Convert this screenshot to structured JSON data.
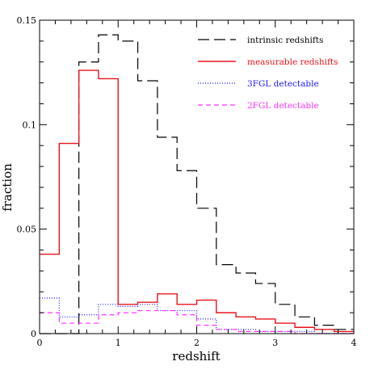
{
  "chart_data": {
    "type": "line",
    "title": "",
    "xlabel": "redshift",
    "ylabel": "fraction",
    "xlim": [
      0,
      4
    ],
    "ylim": [
      0,
      0.15
    ],
    "x_ticks": [
      0,
      1,
      2,
      3,
      4
    ],
    "y_ticks": [
      0,
      0.05,
      0.1,
      0.15
    ],
    "x_tick_labels": [
      "0",
      "1",
      "2",
      "3",
      "4"
    ],
    "y_tick_labels": [
      "0",
      "0.05",
      "0.1",
      "0.15"
    ],
    "grid": false,
    "legend_position": "top-right",
    "bin_edges": [
      0,
      0.25,
      0.5,
      0.75,
      1.0,
      1.25,
      1.5,
      1.75,
      2.0,
      2.25,
      2.5,
      2.75,
      3.0,
      3.25,
      3.5,
      3.75,
      4.0
    ],
    "series": [
      {
        "name": "intrinsic redshifts",
        "color": "#000000",
        "dash": "long-dash",
        "values": [
          0.0,
          0.0,
          0.13,
          0.143,
          0.14,
          0.121,
          0.094,
          0.078,
          0.06,
          0.033,
          0.029,
          0.024,
          0.014,
          0.008,
          0.004,
          0.002
        ]
      },
      {
        "name": "measurable redshifts",
        "color": "#e8141b",
        "dash": "solid",
        "values": [
          0.038,
          0.091,
          0.126,
          0.122,
          0.014,
          0.015,
          0.019,
          0.014,
          0.016,
          0.01,
          0.008,
          0.007,
          0.005,
          0.003,
          0.002,
          0.001
        ]
      },
      {
        "name": "3FGL detectable",
        "color": "#1a1aff",
        "dash": "dotted",
        "values": [
          0.017,
          0.008,
          0.009,
          0.014,
          0.013,
          0.014,
          0.011,
          0.011,
          0.007,
          0.002,
          0.002,
          0.001,
          0.001,
          0.001,
          0.0,
          0.0
        ]
      },
      {
        "name": "2FGL detectable",
        "color": "#ff33ff",
        "dash": "short-dash",
        "values": [
          0.01,
          0.005,
          0.005,
          0.009,
          0.01,
          0.011,
          0.011,
          0.009,
          0.004,
          0.002,
          0.001,
          0.001,
          0.001,
          0.0,
          0.0,
          0.0
        ]
      }
    ]
  }
}
